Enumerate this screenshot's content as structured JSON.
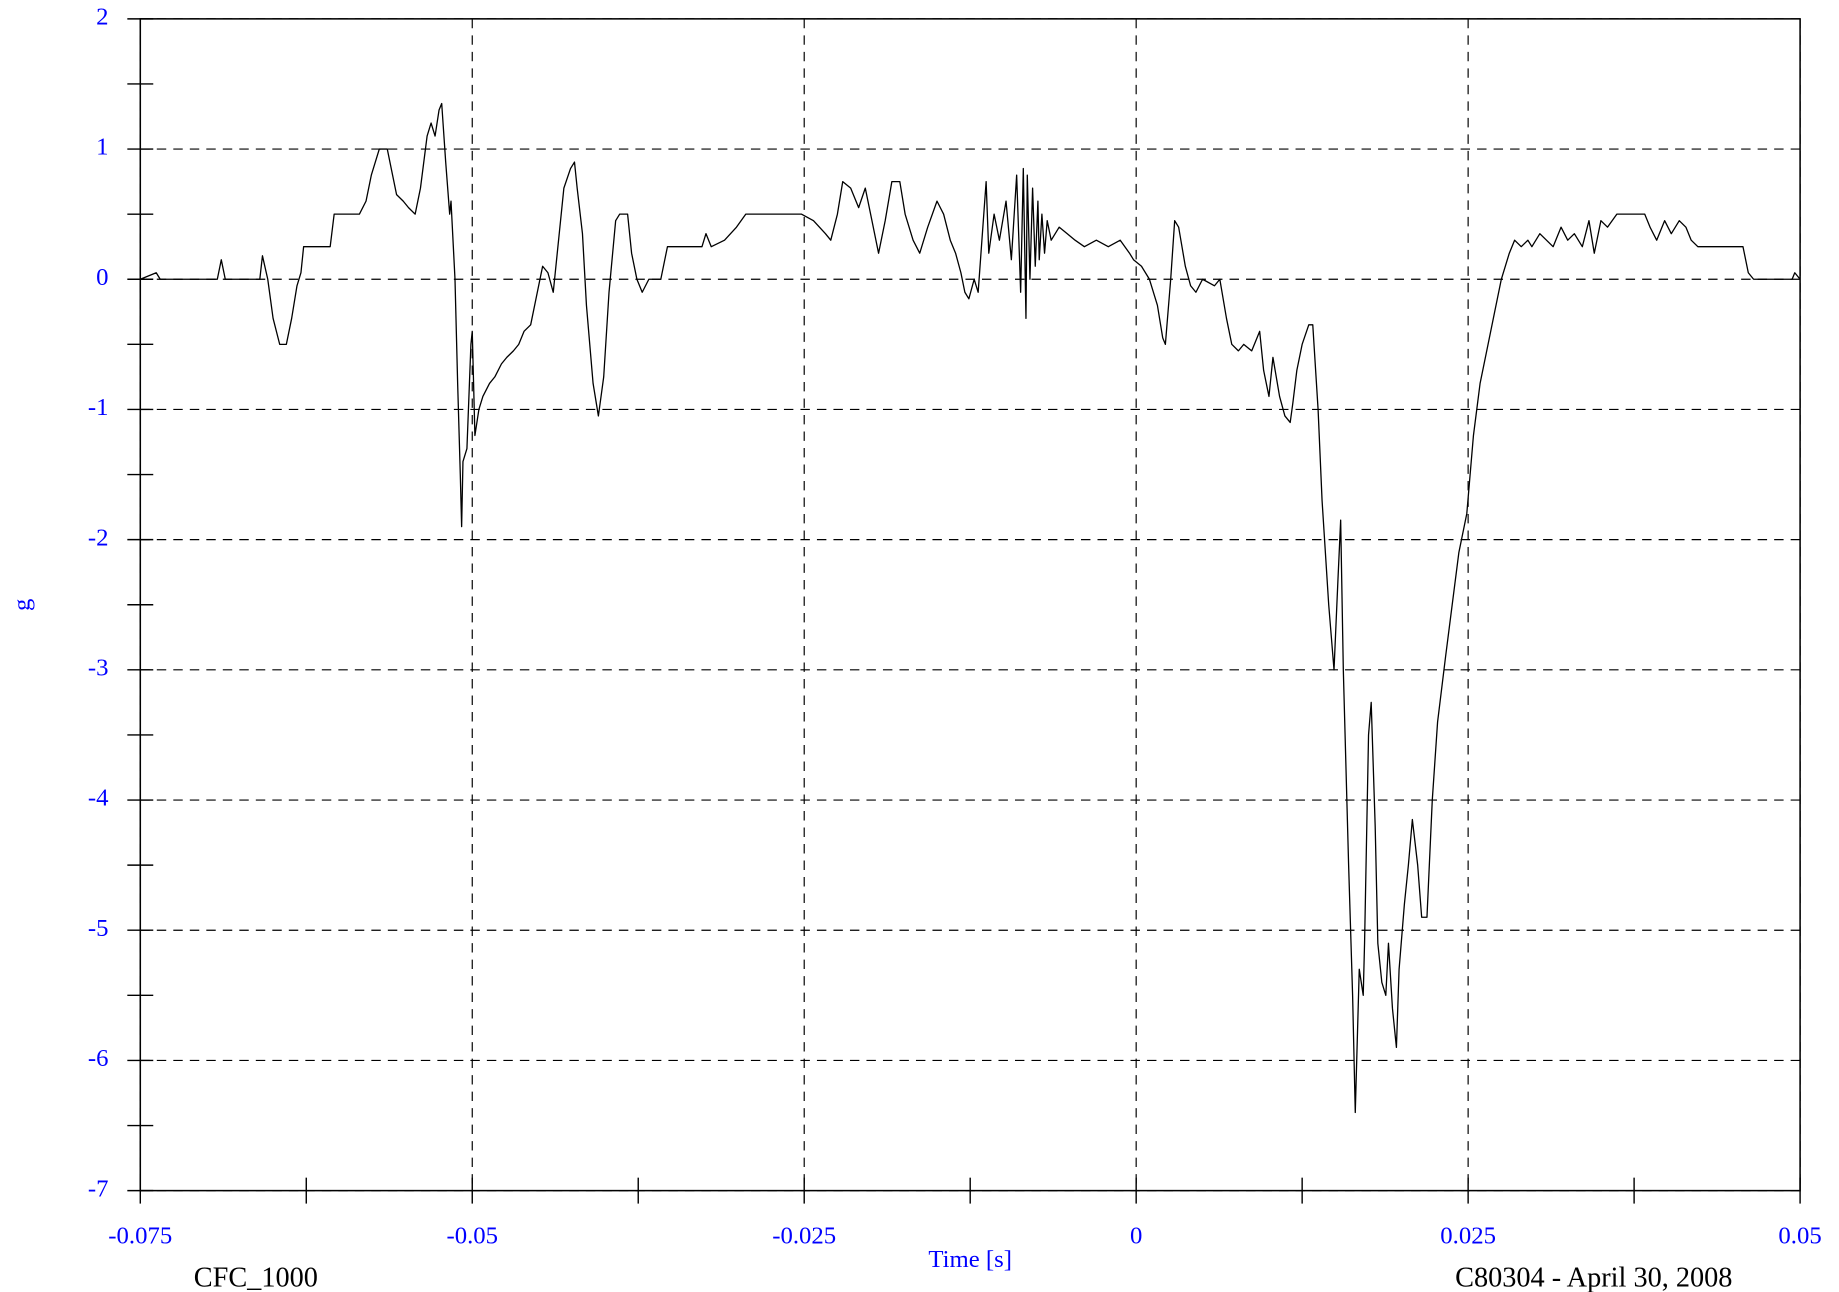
{
  "chart_data": {
    "type": "line",
    "x_label": "Time [s]",
    "y_label": "g",
    "footer_left": "CFC_1000",
    "footer_right": "C80304 - April 30, 2008",
    "xlim": [
      -0.075,
      0.05
    ],
    "ylim": [
      -7,
      2
    ],
    "xticks": [
      -0.075,
      -0.05,
      -0.025,
      0,
      0.025,
      0.05
    ],
    "yticks": [
      -7,
      -6,
      -5,
      -4,
      -3,
      -2,
      -1,
      0,
      1,
      2
    ],
    "x_minor_ticks": [
      -0.0625,
      -0.0375,
      -0.0125,
      0.0125,
      0.0375
    ],
    "y_minor_ticks": [
      -6.5,
      -5.5,
      -4.5,
      -3.5,
      -2.5,
      -1.5,
      -0.5,
      0.5,
      1.5
    ],
    "grid": true,
    "series": [
      {
        "color": "#000000",
        "x": [
          -0.075,
          -0.0738,
          -0.0735,
          -0.0692,
          -0.0689,
          -0.0686,
          -0.066,
          -0.0658,
          -0.0654,
          -0.065,
          -0.0645,
          -0.064,
          -0.0636,
          -0.0632,
          -0.0629,
          -0.0627,
          -0.0607,
          -0.0604,
          -0.0585,
          -0.058,
          -0.0576,
          -0.057,
          -0.0564,
          -0.0561,
          -0.0557,
          -0.0552,
          -0.0548,
          -0.0543,
          -0.0539,
          -0.0534,
          -0.0531,
          -0.0528,
          -0.0525,
          -0.0523,
          -0.052,
          -0.0517,
          -0.0516,
          -0.0513,
          -0.0511,
          -0.0509,
          -0.0508,
          -0.0507,
          -0.0504,
          -0.0501,
          -0.05,
          -0.0498,
          -0.0495,
          -0.0492,
          -0.0487,
          -0.0483,
          -0.0478,
          -0.0474,
          -0.0469,
          -0.0465,
          -0.0461,
          -0.0456,
          -0.0452,
          -0.0447,
          -0.0443,
          -0.0439,
          -0.0435,
          -0.0431,
          -0.0426,
          -0.0423,
          -0.0421,
          -0.0417,
          -0.0414,
          -0.0409,
          -0.0405,
          -0.0401,
          -0.0397,
          -0.0392,
          -0.0389,
          -0.0383,
          -0.038,
          -0.0376,
          -0.0372,
          -0.0367,
          -0.0358,
          -0.0353,
          -0.0327,
          -0.0324,
          -0.032,
          -0.031,
          -0.0301,
          -0.0294,
          -0.0252,
          -0.0243,
          -0.0234,
          -0.023,
          -0.0225,
          -0.0221,
          -0.0215,
          -0.0209,
          -0.0204,
          -0.0199,
          -0.0194,
          -0.0189,
          -0.0184,
          -0.0178,
          -0.0174,
          -0.0168,
          -0.0163,
          -0.0157,
          -0.015,
          -0.0145,
          -0.014,
          -0.0136,
          -0.0132,
          -0.0129,
          -0.0126,
          -0.0122,
          -0.0119,
          -0.0113,
          -0.0111,
          -0.0107,
          -0.0103,
          -0.0098,
          -0.0094,
          -0.009,
          -0.0087,
          -0.0085,
          -0.0083,
          -0.0082,
          -0.008,
          -0.0078,
          -0.0076,
          -0.0074,
          -0.0073,
          -0.0071,
          -0.0069,
          -0.0067,
          -0.0064,
          -0.0058,
          -0.0052,
          -0.0046,
          -0.0039,
          -0.003,
          -0.0021,
          -0.0012,
          -0.0005,
          -0.0002,
          0.0004,
          0.001,
          0.0016,
          0.002,
          0.0022,
          0.0026,
          0.0029,
          0.0032,
          0.0037,
          0.0041,
          0.0045,
          0.005,
          0.0059,
          0.0063,
          0.0068,
          0.0072,
          0.0077,
          0.0081,
          0.0087,
          0.0093,
          0.0096,
          0.01,
          0.0103,
          0.0108,
          0.0112,
          0.0116,
          0.0118,
          0.0121,
          0.0125,
          0.013,
          0.0133,
          0.0137,
          0.014,
          0.0145,
          0.0149,
          0.0152,
          0.0154,
          0.0156,
          0.016,
          0.0163,
          0.0165,
          0.0168,
          0.0171,
          0.0172,
          0.0175,
          0.0177,
          0.018,
          0.0182,
          0.0185,
          0.0188,
          0.019,
          0.0193,
          0.0196,
          0.0198,
          0.0202,
          0.0205,
          0.0208,
          0.0212,
          0.0215,
          0.0219,
          0.0223,
          0.0227,
          0.0233,
          0.0238,
          0.0243,
          0.0249,
          0.0254,
          0.0259,
          0.0265,
          0.027,
          0.0275,
          0.0281,
          0.0285,
          0.029,
          0.0295,
          0.0298,
          0.0304,
          0.0309,
          0.0314,
          0.032,
          0.0325,
          0.033,
          0.0336,
          0.0341,
          0.0345,
          0.035,
          0.0355,
          0.0362,
          0.0383,
          0.0387,
          0.0392,
          0.0398,
          0.0403,
          0.0409,
          0.0414,
          0.0418,
          0.0423,
          0.0457,
          0.0461,
          0.0465,
          0.0494,
          0.0496,
          0.05
        ],
        "values": [
          0,
          0.05,
          0,
          0,
          0.15,
          0,
          0,
          0.18,
          0,
          -0.3,
          -0.5,
          -0.5,
          -0.3,
          -0.05,
          0.05,
          0.25,
          0.25,
          0.5,
          0.5,
          0.6,
          0.8,
          1.0,
          1.0,
          0.85,
          0.65,
          0.6,
          0.55,
          0.5,
          0.7,
          1.1,
          1.2,
          1.1,
          1.3,
          1.35,
          0.9,
          0.5,
          0.6,
          0,
          -0.8,
          -1.5,
          -1.9,
          -1.4,
          -1.3,
          -0.5,
          -0.4,
          -1.2,
          -1.0,
          -0.9,
          -0.8,
          -0.75,
          -0.65,
          -0.6,
          -0.55,
          -0.5,
          -0.4,
          -0.35,
          -0.15,
          0.1,
          0.05,
          -0.1,
          0.3,
          0.7,
          0.85,
          0.9,
          0.7,
          0.35,
          -0.2,
          -0.8,
          -1.05,
          -0.75,
          -0.1,
          0.45,
          0.5,
          0.5,
          0.2,
          0,
          -0.1,
          0,
          0,
          0.25,
          0.25,
          0.35,
          0.25,
          0.3,
          0.4,
          0.5,
          0.5,
          0.45,
          0.35,
          0.3,
          0.5,
          0.75,
          0.7,
          0.55,
          0.7,
          0.45,
          0.2,
          0.45,
          0.75,
          0.75,
          0.5,
          0.3,
          0.2,
          0.4,
          0.6,
          0.5,
          0.3,
          0.2,
          0.05,
          -0.1,
          -0.15,
          0,
          -0.1,
          0.75,
          0.2,
          0.5,
          0.3,
          0.6,
          0.15,
          0.8,
          -0.1,
          0.85,
          -0.3,
          0.8,
          0,
          0.7,
          0.1,
          0.6,
          0.15,
          0.5,
          0.2,
          0.45,
          0.3,
          0.4,
          0.35,
          0.3,
          0.25,
          0.3,
          0.25,
          0.3,
          0.2,
          0.15,
          0.1,
          0,
          -0.2,
          -0.45,
          -0.5,
          0,
          0.45,
          0.4,
          0.1,
          -0.05,
          -0.1,
          0,
          -0.05,
          0,
          -0.3,
          -0.5,
          -0.55,
          -0.5,
          -0.55,
          -0.4,
          -0.7,
          -0.9,
          -0.6,
          -0.9,
          -1.05,
          -1.1,
          -0.95,
          -0.7,
          -0.5,
          -0.35,
          -0.35,
          -1.0,
          -1.7,
          -2.5,
          -3.0,
          -2.3,
          -1.85,
          -3.0,
          -4.5,
          -5.5,
          -6.4,
          -5.3,
          -5.5,
          -5.1,
          -3.5,
          -3.25,
          -4.2,
          -5.1,
          -5.4,
          -5.5,
          -5.1,
          -5.6,
          -5.9,
          -5.3,
          -4.8,
          -4.5,
          -4.15,
          -4.5,
          -4.9,
          -4.9,
          -4.0,
          -3.4,
          -2.9,
          -2.5,
          -2.1,
          -1.8,
          -1.2,
          -0.8,
          -0.5,
          -0.25,
          0,
          0.2,
          0.3,
          0.25,
          0.3,
          0.25,
          0.35,
          0.3,
          0.25,
          0.4,
          0.3,
          0.35,
          0.25,
          0.45,
          0.2,
          0.45,
          0.4,
          0.5,
          0.5,
          0.4,
          0.3,
          0.45,
          0.35,
          0.45,
          0.4,
          0.3,
          0.25,
          0.25,
          0.05,
          0,
          0,
          0.05,
          0
        ]
      }
    ]
  }
}
